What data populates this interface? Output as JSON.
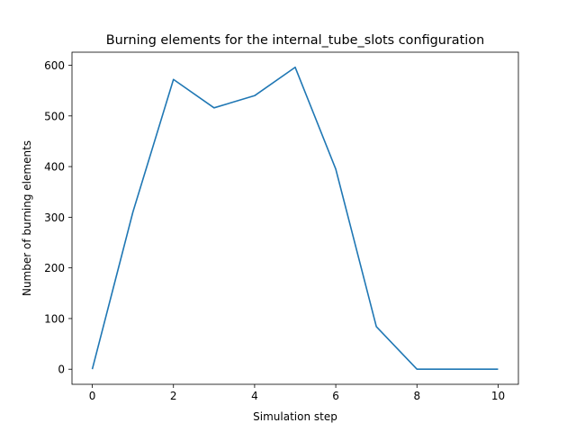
{
  "chart_data": {
    "type": "line",
    "title": "Burning elements for the internal_tube_slots configuration",
    "xlabel": "Simulation step",
    "ylabel": "Number of burning elements",
    "xlim": [
      -0.5,
      10.5
    ],
    "ylim": [
      -29.8,
      625.8
    ],
    "xticks": [
      0,
      2,
      4,
      6,
      8,
      10
    ],
    "yticks": [
      0,
      100,
      200,
      300,
      400,
      500,
      600
    ],
    "grid": false,
    "series": [
      {
        "color": "#1f77b4",
        "x": [
          0,
          1,
          2,
          3,
          4,
          5,
          6,
          7,
          8,
          9,
          10
        ],
        "y": [
          0,
          310,
          572,
          516,
          540,
          596,
          395,
          84,
          0,
          0,
          0
        ]
      }
    ]
  }
}
